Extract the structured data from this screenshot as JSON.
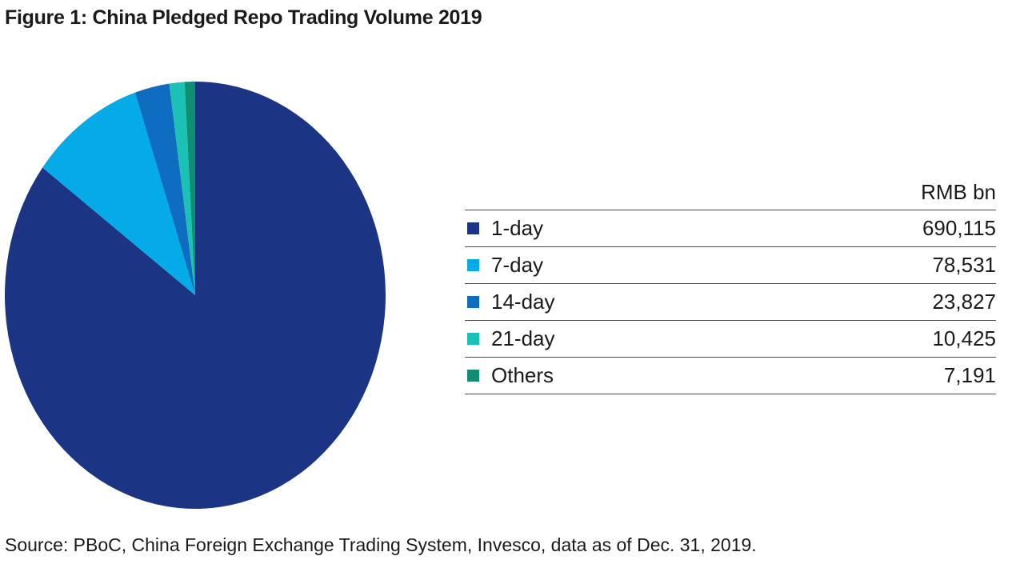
{
  "chart_data": {
    "type": "pie",
    "title": "Figure 1: China Pledged Repo Trading Volume 2019",
    "unit": "RMB bn",
    "slices": [
      {
        "label": "1-day",
        "value": 690115,
        "display": "690,115",
        "color": "#1b3483"
      },
      {
        "label": "7-day",
        "value": 78531,
        "display": "78,531",
        "color": "#05abe6"
      },
      {
        "label": "14-day",
        "value": 23827,
        "display": "23,827",
        "color": "#0f6dbf"
      },
      {
        "label": "21-day",
        "value": 10425,
        "display": "10,425",
        "color": "#1cc1b6"
      },
      {
        "label": "Others",
        "value": 7191,
        "display": "7,191",
        "color": "#108e73"
      }
    ],
    "start_angle_deg": 0,
    "direction": "clockwise-for-first-slice",
    "legend": "right-table"
  },
  "source": "Source: PBoC, China Foreign Exchange Trading System, Invesco, data as of Dec. 31, 2019."
}
